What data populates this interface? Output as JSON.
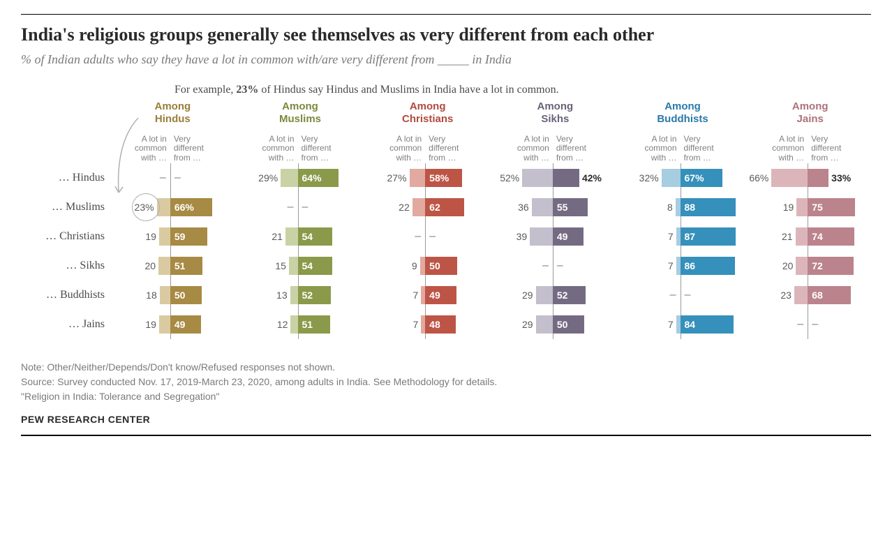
{
  "title": "India's religious groups generally see themselves as very different from each other",
  "subtitle": "% of Indian adults who say they have a lot in common with/are very different from _____ in India",
  "example_prefix": "For example, ",
  "example_bold": "23%",
  "example_suffix": " of Hindus say Hindus and Muslims in India have a lot in common.",
  "subheader_left": "A lot in common with …",
  "subheader_right": "Very different from …",
  "row_labels": [
    "… Hindus",
    "… Muslims",
    "… Christians",
    "… Sikhs",
    "… Buddhists",
    "… Jains"
  ],
  "scale_max": 100,
  "groups": [
    {
      "name": "Among Hindus",
      "header_color": "#9a7e3a",
      "light_color": "#d9caa1",
      "dark_color": "#a78a43",
      "data": [
        {
          "common": null,
          "diff": null
        },
        {
          "common": 23,
          "diff": 66,
          "circle": true,
          "has_pct": true
        },
        {
          "common": 19,
          "diff": 59
        },
        {
          "common": 20,
          "diff": 51
        },
        {
          "common": 18,
          "diff": 50
        },
        {
          "common": 19,
          "diff": 49
        }
      ]
    },
    {
      "name": "Among Muslims",
      "header_color": "#7a8a3c",
      "light_color": "#c9d2a5",
      "dark_color": "#8a9a4a",
      "data": [
        {
          "common": 29,
          "diff": 64,
          "has_pct": true
        },
        {
          "common": null,
          "diff": null
        },
        {
          "common": 21,
          "diff": 54
        },
        {
          "common": 15,
          "diff": 54
        },
        {
          "common": 13,
          "diff": 52
        },
        {
          "common": 12,
          "diff": 51
        }
      ]
    },
    {
      "name": "Among Christians",
      "header_color": "#b04a3e",
      "light_color": "#e2a9a0",
      "dark_color": "#bd5547",
      "data": [
        {
          "common": 27,
          "diff": 58,
          "has_pct": true
        },
        {
          "common": 22,
          "diff": 62
        },
        {
          "common": null,
          "diff": null
        },
        {
          "common": 9,
          "diff": 50
        },
        {
          "common": 7,
          "diff": 49
        },
        {
          "common": 7,
          "diff": 48
        }
      ]
    },
    {
      "name": "Among Sikhs",
      "header_color": "#6a6277",
      "light_color": "#c4bfcc",
      "dark_color": "#746b83",
      "data": [
        {
          "common": 52,
          "diff": 42,
          "has_pct": true,
          "diff_outside": true
        },
        {
          "common": 36,
          "diff": 55
        },
        {
          "common": 39,
          "diff": 49
        },
        {
          "common": null,
          "diff": null
        },
        {
          "common": 29,
          "diff": 52
        },
        {
          "common": 29,
          "diff": 50
        }
      ]
    },
    {
      "name": "Among Buddhists",
      "header_color": "#2a7aa8",
      "light_color": "#a6cde0",
      "dark_color": "#3590bb",
      "data": [
        {
          "common": 32,
          "diff": 67,
          "has_pct": true
        },
        {
          "common": 8,
          "diff": 88
        },
        {
          "common": 7,
          "diff": 87
        },
        {
          "common": 7,
          "diff": 86
        },
        {
          "common": null,
          "diff": null
        },
        {
          "common": 7,
          "diff": 84
        }
      ]
    },
    {
      "name": "Among Jains",
      "header_color": "#b0707a",
      "light_color": "#dcb5bb",
      "dark_color": "#bb838b",
      "data": [
        {
          "common": 66,
          "diff": 33,
          "has_pct": true,
          "diff_outside": true
        },
        {
          "common": 19,
          "diff": 75
        },
        {
          "common": 21,
          "diff": 74
        },
        {
          "common": 20,
          "diff": 72
        },
        {
          "common": 23,
          "diff": 68
        },
        {
          "common": null,
          "diff": null
        }
      ]
    }
  ],
  "note1": "Note: Other/Neither/Depends/Don't know/Refused responses not shown.",
  "note2": "Source: Survey conducted Nov. 17, 2019-March 23, 2020, among adults in India. See Methodology for details.",
  "note3": "\"Religion in India: Tolerance and Segregation\"",
  "brand": "PEW RESEARCH CENTER"
}
